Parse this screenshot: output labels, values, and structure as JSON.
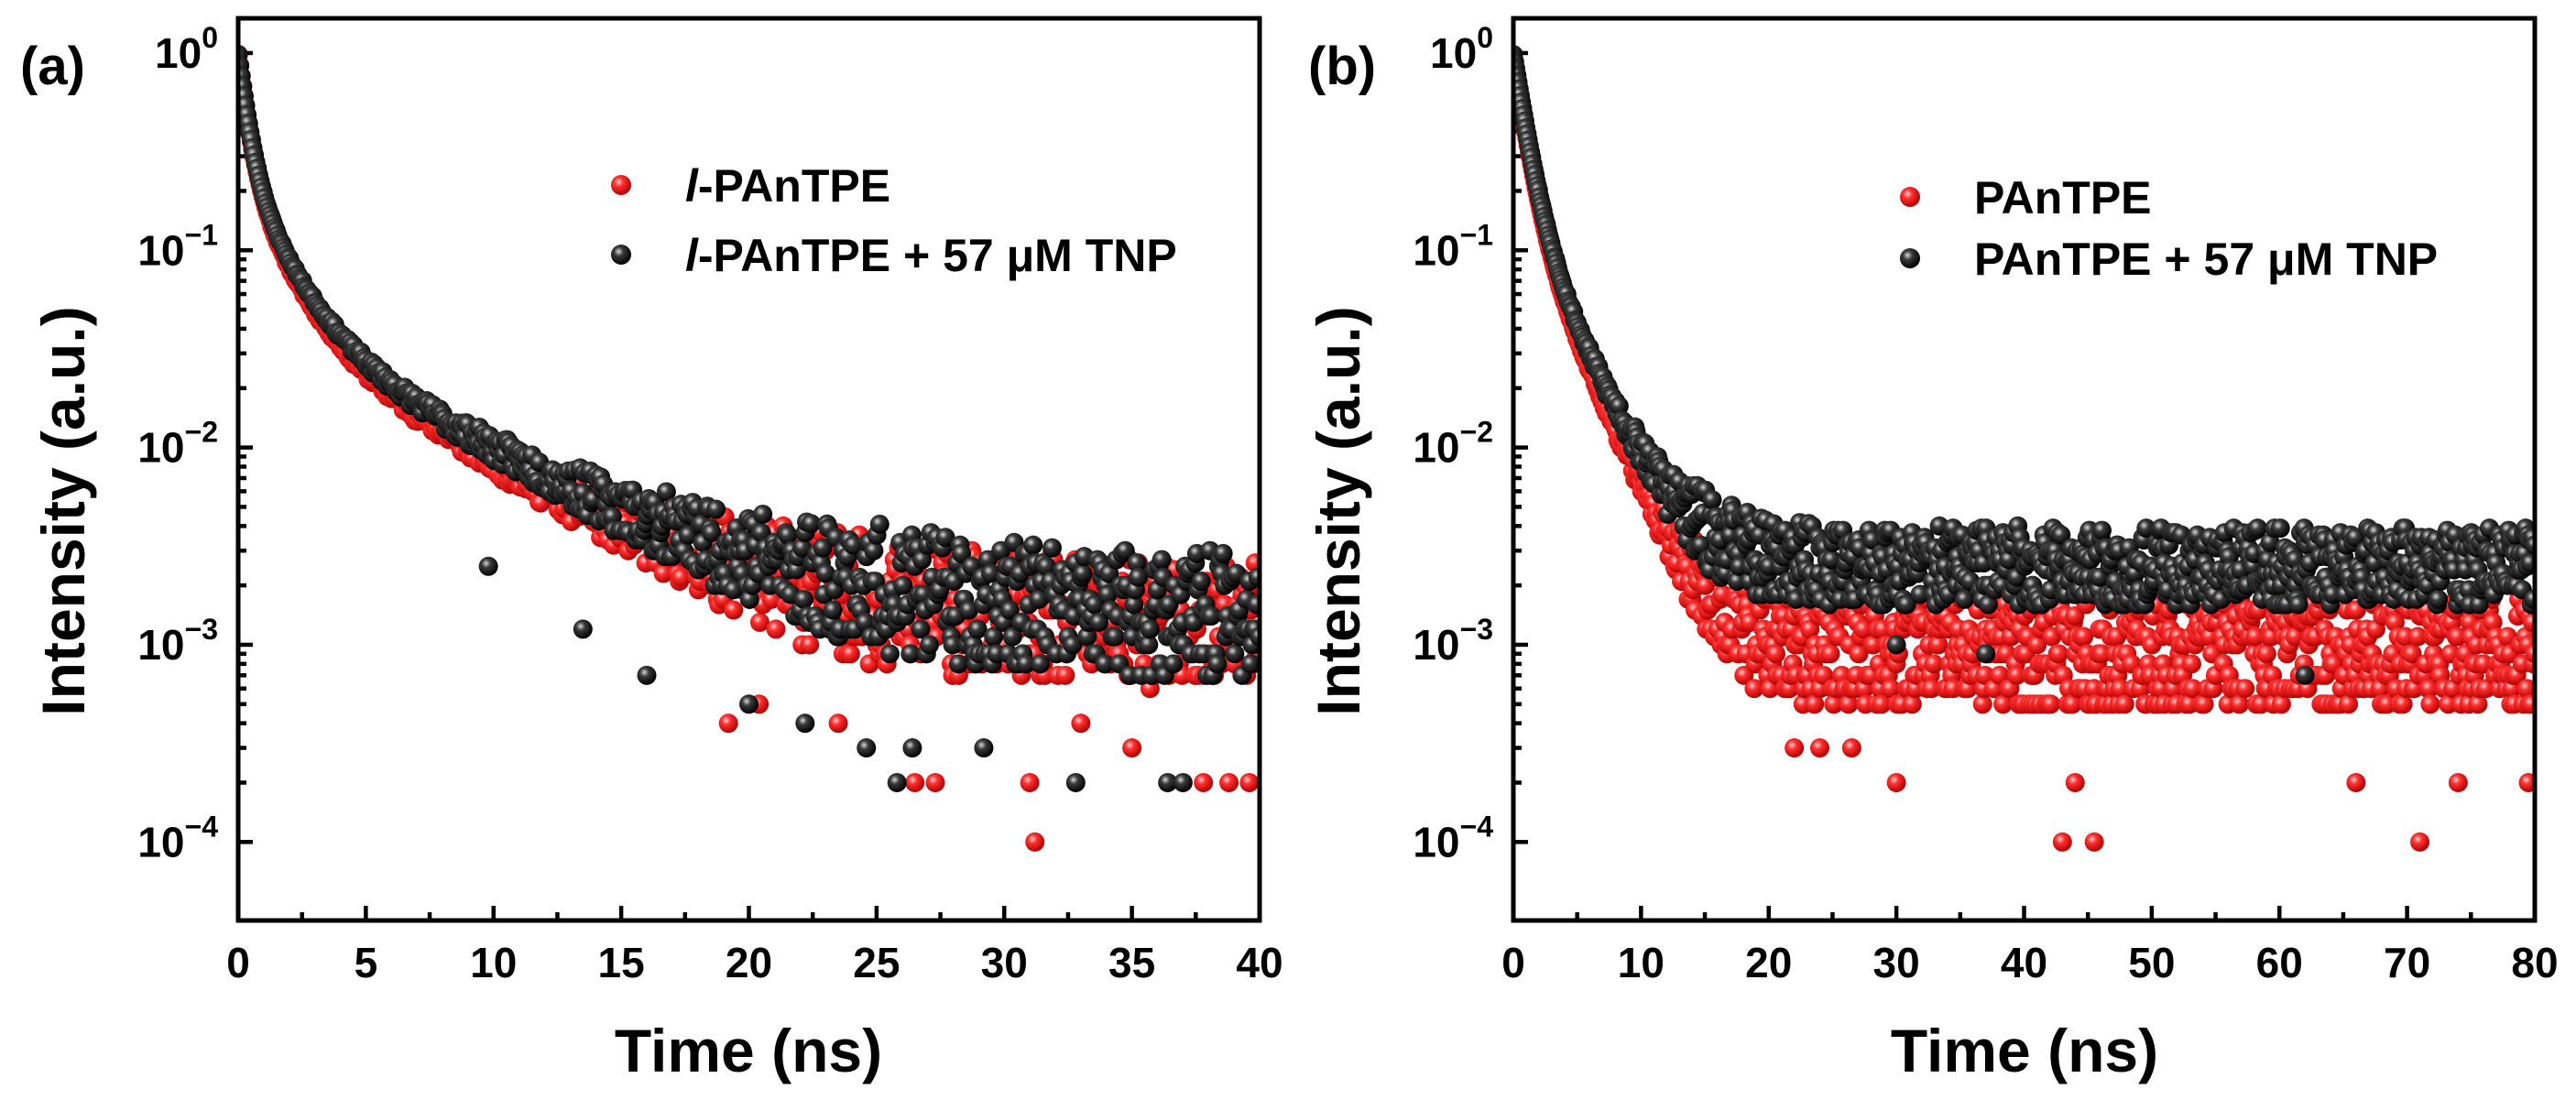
{
  "colors": {
    "red": "#ff1a1a",
    "black": "#141414",
    "axis": "#000000"
  },
  "chart_data": [
    {
      "type": "scatter",
      "yscale": "log",
      "panel_label": "(a)",
      "xlabel": "Time (ns)",
      "ylabel": "Intensity (a.u.)",
      "xlim": [
        0,
        40
      ],
      "ylim": [
        4e-05,
        1.5
      ],
      "xticks": [
        0,
        5,
        10,
        15,
        20,
        25,
        30,
        35,
        40
      ],
      "xtick_labels": [
        "0",
        "5",
        "10",
        "15",
        "20",
        "25",
        "30",
        "35",
        "40"
      ],
      "yticks": [
        1,
        0.1,
        0.01,
        0.001,
        0.0001
      ],
      "ytick_labels": [
        {
          "base": "10",
          "exp": "0"
        },
        {
          "base": "10",
          "exp": "−1"
        },
        {
          "base": "10",
          "exp": "−2"
        },
        {
          "base": "10",
          "exp": "−3"
        },
        {
          "base": "10",
          "exp": "−4"
        }
      ],
      "legend_position": "top-right",
      "series": [
        {
          "name": "l-PAnTPE",
          "legend_prefix": "l",
          "legend_rest": "-PAnTPE",
          "color": "#ff1a1a",
          "tmax": 40,
          "n": 700,
          "decay": [
            [
              0.72,
              0.35
            ],
            [
              0.22,
              1.3
            ],
            [
              0.045,
              5.5
            ]
          ],
          "floor": 0.0012,
          "floor_spread": 0.32,
          "noise_seed": 11,
          "outliers_x": [
            19.2,
            20.4,
            23.5,
            26.5,
            27.3,
            31.0,
            31.2,
            33.0,
            35.0,
            37.8,
            38.8,
            39.6
          ],
          "outliers_y": [
            0.0004,
            0.0005,
            0.0004,
            0.0002,
            0.0002,
            0.0002,
            0.0001,
            0.0004,
            0.0003,
            0.0002,
            0.0002,
            0.0002
          ]
        },
        {
          "name": "l-PAnTPE + 57 μM TNP",
          "legend_prefix": "l",
          "legend_rest": "-PAnTPE + 57 μM TNP",
          "color": "#141414",
          "tmax": 40,
          "n": 700,
          "decay": [
            [
              0.7,
              0.35
            ],
            [
              0.23,
              1.35
            ],
            [
              0.048,
              5.8
            ]
          ],
          "floor": 0.00135,
          "floor_spread": 0.32,
          "noise_seed": 23,
          "outliers_x": [
            9.8,
            13.5,
            16.0,
            20.0,
            22.2,
            24.6,
            25.8,
            26.4,
            29.2,
            32.8,
            36.4,
            37.0
          ],
          "outliers_y": [
            0.0025,
            0.0012,
            0.0007,
            0.0005,
            0.0004,
            0.0003,
            0.0002,
            0.0003,
            0.0003,
            0.0002,
            0.0002,
            0.0002
          ]
        }
      ]
    },
    {
      "type": "scatter",
      "yscale": "log",
      "panel_label": "(b)",
      "xlabel": "Time (ns)",
      "ylabel": "Intensity (a.u.)",
      "xlim": [
        0,
        80
      ],
      "ylim": [
        4e-05,
        1.5
      ],
      "xticks": [
        0,
        10,
        20,
        30,
        40,
        50,
        60,
        70,
        80
      ],
      "xtick_labels": [
        "0",
        "10",
        "20",
        "30",
        "40",
        "50",
        "60",
        "70",
        "80"
      ],
      "yticks": [
        1,
        0.1,
        0.01,
        0.001,
        0.0001
      ],
      "ytick_labels": [
        {
          "base": "10",
          "exp": "0"
        },
        {
          "base": "10",
          "exp": "−1"
        },
        {
          "base": "10",
          "exp": "−2"
        },
        {
          "base": "10",
          "exp": "−3"
        },
        {
          "base": "10",
          "exp": "−4"
        }
      ],
      "legend_position": "top-right",
      "series": [
        {
          "name": "PAnTPE",
          "legend_prefix": "",
          "legend_rest": "PAnTPE",
          "color": "#ff1a1a",
          "tmax": 80,
          "n": 900,
          "decay": [
            [
              0.8,
              0.9
            ],
            [
              0.18,
              2.9
            ]
          ],
          "floor": 0.0009,
          "floor_spread": 0.28,
          "noise_seed": 37,
          "outliers_x": [
            22.0,
            24.0,
            26.5,
            30.0,
            43.0,
            44.0,
            45.5,
            66.0,
            71.0,
            74.0,
            79.5
          ],
          "outliers_y": [
            0.0003,
            0.0003,
            0.0003,
            0.0002,
            0.0001,
            0.0002,
            0.0001,
            0.0002,
            0.0001,
            0.0002,
            0.0002
          ]
        },
        {
          "name": "PAnTPE + 57 μM TNP",
          "legend_prefix": "",
          "legend_rest": "PAnTPE + 57 μM TNP",
          "color": "#141414",
          "tmax": 80,
          "n": 900,
          "decay": [
            [
              0.8,
              0.95
            ],
            [
              0.18,
              3.1
            ]
          ],
          "floor": 0.0025,
          "floor_spread": 0.2,
          "noise_seed": 53,
          "outliers_x": [
            30.0,
            37.0,
            62.0
          ],
          "outliers_y": [
            0.001,
            0.0009,
            0.0007
          ]
        }
      ]
    }
  ]
}
